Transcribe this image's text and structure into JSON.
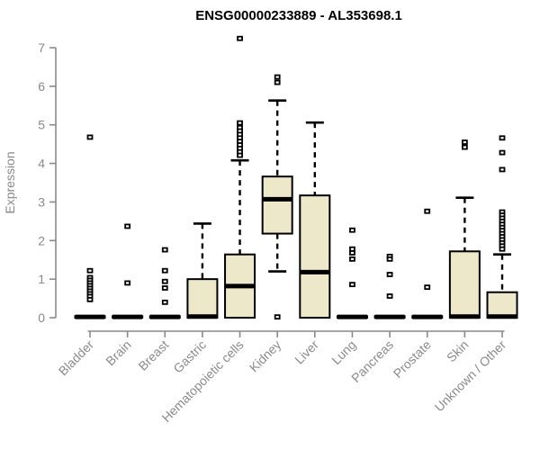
{
  "chart_data": {
    "type": "boxplot",
    "title": "ENSG00000233889 - AL353698.1",
    "ylabel": "Expression",
    "ylim": [
      0,
      7
    ],
    "yticks": [
      0,
      1,
      2,
      3,
      4,
      5,
      6,
      7
    ],
    "grid": false,
    "legend": "none",
    "colors": {
      "box_fill": "#ede8c9",
      "box_stroke": "#000000",
      "median": "#000000",
      "axis": "#8a8a8a",
      "title": "#000000"
    },
    "categories": [
      "Bladder",
      "Brain",
      "Breast",
      "Gastric",
      "Hematopoietic cells",
      "Kidney",
      "Liver",
      "Lung",
      "Pancreas",
      "Prostate",
      "Skin",
      "Unknown / Other"
    ],
    "series": [
      {
        "category": "Bladder",
        "q1": 0,
        "median": 0.02,
        "q3": 0.04,
        "whisker_low": 0,
        "whisker_high": 0.04,
        "outliers": [
          4.68,
          1.22,
          1.04,
          0.97,
          0.9,
          0.83,
          0.76,
          0.69,
          0.62,
          0.55,
          0.47
        ]
      },
      {
        "category": "Brain",
        "q1": 0,
        "median": 0.02,
        "q3": 0.04,
        "whisker_low": 0,
        "whisker_high": 0.04,
        "outliers": [
          2.37,
          0.9
        ]
      },
      {
        "category": "Breast",
        "q1": 0,
        "median": 0.02,
        "q3": 0.04,
        "whisker_low": 0,
        "whisker_high": 0.04,
        "outliers": [
          1.76,
          1.22,
          0.94,
          0.77,
          0.4
        ]
      },
      {
        "category": "Gastric",
        "q1": 0,
        "median": 0.03,
        "q3": 1.0,
        "whisker_low": 0,
        "whisker_high": 2.44,
        "outliers": []
      },
      {
        "category": "Hematopoietic cells",
        "q1": 0,
        "median": 0.82,
        "q3": 1.64,
        "whisker_low": 0,
        "whisker_high": 4.08,
        "outliers": [
          7.24,
          5.05,
          4.93,
          4.84,
          4.75,
          4.66,
          4.57,
          4.48,
          4.39,
          4.3,
          4.21
        ]
      },
      {
        "category": "Kidney",
        "q1": 2.18,
        "median": 3.07,
        "q3": 3.66,
        "whisker_low": 1.2,
        "whisker_high": 5.63,
        "outliers": [
          6.24,
          6.1,
          0.02
        ]
      },
      {
        "category": "Liver",
        "q1": 0,
        "median": 1.18,
        "q3": 3.17,
        "whisker_low": 0,
        "whisker_high": 5.06,
        "outliers": []
      },
      {
        "category": "Lung",
        "q1": 0,
        "median": 0.02,
        "q3": 0.04,
        "whisker_low": 0,
        "whisker_high": 0.04,
        "outliers": [
          2.27,
          1.78,
          1.68,
          1.52,
          0.86
        ]
      },
      {
        "category": "Pancreas",
        "q1": 0,
        "median": 0.02,
        "q3": 0.04,
        "whisker_low": 0,
        "whisker_high": 0.04,
        "outliers": [
          1.59,
          1.52,
          1.12,
          0.56
        ]
      },
      {
        "category": "Prostate",
        "q1": 0,
        "median": 0.02,
        "q3": 0.04,
        "whisker_low": 0,
        "whisker_high": 0.04,
        "outliers": [
          2.76,
          0.79
        ]
      },
      {
        "category": "Skin",
        "q1": 0,
        "median": 0.03,
        "q3": 1.72,
        "whisker_low": 0,
        "whisker_high": 3.11,
        "outliers": [
          4.55,
          4.42
        ]
      },
      {
        "category": "Unknown / Other",
        "q1": 0,
        "median": 0.03,
        "q3": 0.66,
        "whisker_low": 0,
        "whisker_high": 1.64,
        "outliers": [
          4.66,
          4.28,
          3.84,
          2.74,
          2.66,
          2.58,
          2.5,
          2.42,
          2.34,
          2.26,
          2.18,
          2.1,
          2.02,
          1.94,
          1.86,
          1.78
        ]
      }
    ]
  }
}
